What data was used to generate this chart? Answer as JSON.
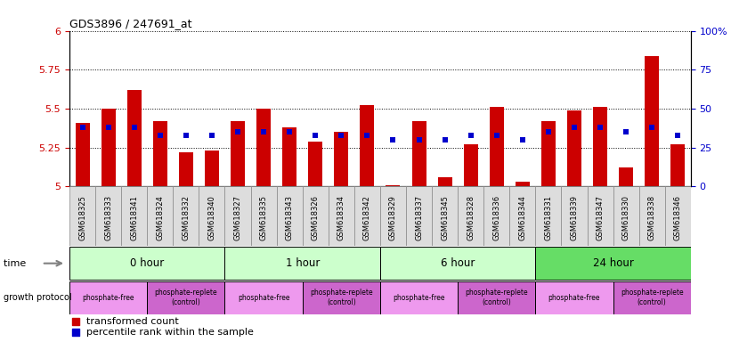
{
  "title": "GDS3896 / 247691_at",
  "samples": [
    "GSM618325",
    "GSM618333",
    "GSM618341",
    "GSM618324",
    "GSM618332",
    "GSM618340",
    "GSM618327",
    "GSM618335",
    "GSM618343",
    "GSM618326",
    "GSM618334",
    "GSM618342",
    "GSM618329",
    "GSM618337",
    "GSM618345",
    "GSM618328",
    "GSM618336",
    "GSM618344",
    "GSM618331",
    "GSM618339",
    "GSM618347",
    "GSM618330",
    "GSM618338",
    "GSM618346"
  ],
  "transformed_count": [
    5.41,
    5.5,
    5.62,
    5.42,
    5.22,
    5.23,
    5.42,
    5.5,
    5.38,
    5.29,
    5.35,
    5.52,
    5.01,
    5.42,
    5.06,
    5.27,
    5.51,
    5.03,
    5.42,
    5.49,
    5.51,
    5.12,
    5.84,
    5.27
  ],
  "percentile_rank": [
    38,
    38,
    38,
    33,
    33,
    33,
    35,
    35,
    35,
    33,
    33,
    33,
    30,
    30,
    30,
    33,
    33,
    30,
    35,
    38,
    38,
    35,
    38,
    33
  ],
  "time_groups": [
    {
      "label": "0 hour",
      "start": 0,
      "end": 6,
      "color": "#ccffcc"
    },
    {
      "label": "1 hour",
      "start": 6,
      "end": 12,
      "color": "#ccffcc"
    },
    {
      "label": "6 hour",
      "start": 12,
      "end": 18,
      "color": "#ccffcc"
    },
    {
      "label": "24 hour",
      "start": 18,
      "end": 24,
      "color": "#66dd66"
    }
  ],
  "protocol_groups": [
    {
      "label": "phosphate-free",
      "start": 0,
      "end": 3,
      "color": "#ee99ee"
    },
    {
      "label": "phosphate-replete\n(control)",
      "start": 3,
      "end": 6,
      "color": "#cc66cc"
    },
    {
      "label": "phosphate-free",
      "start": 6,
      "end": 9,
      "color": "#ee99ee"
    },
    {
      "label": "phosphate-replete\n(control)",
      "start": 9,
      "end": 12,
      "color": "#cc66cc"
    },
    {
      "label": "phosphate-free",
      "start": 12,
      "end": 15,
      "color": "#ee99ee"
    },
    {
      "label": "phosphate-replete\n(control)",
      "start": 15,
      "end": 18,
      "color": "#cc66cc"
    },
    {
      "label": "phosphate-free",
      "start": 18,
      "end": 21,
      "color": "#ee99ee"
    },
    {
      "label": "phosphate-replete\n(control)",
      "start": 21,
      "end": 24,
      "color": "#cc66cc"
    }
  ],
  "ylim_left": [
    5.0,
    6.0
  ],
  "ylim_right": [
    0,
    100
  ],
  "yticks_left": [
    5.0,
    5.25,
    5.5,
    5.75,
    6.0
  ],
  "yticks_right": [
    0,
    25,
    50,
    75,
    100
  ],
  "bar_color": "#cc0000",
  "dot_color": "#0000cc",
  "bar_width": 0.55,
  "bg_color": "#ffffff",
  "tick_label_color_left": "#cc0000",
  "tick_label_color_right": "#0000cc",
  "xlabel_bg": "#dddddd"
}
